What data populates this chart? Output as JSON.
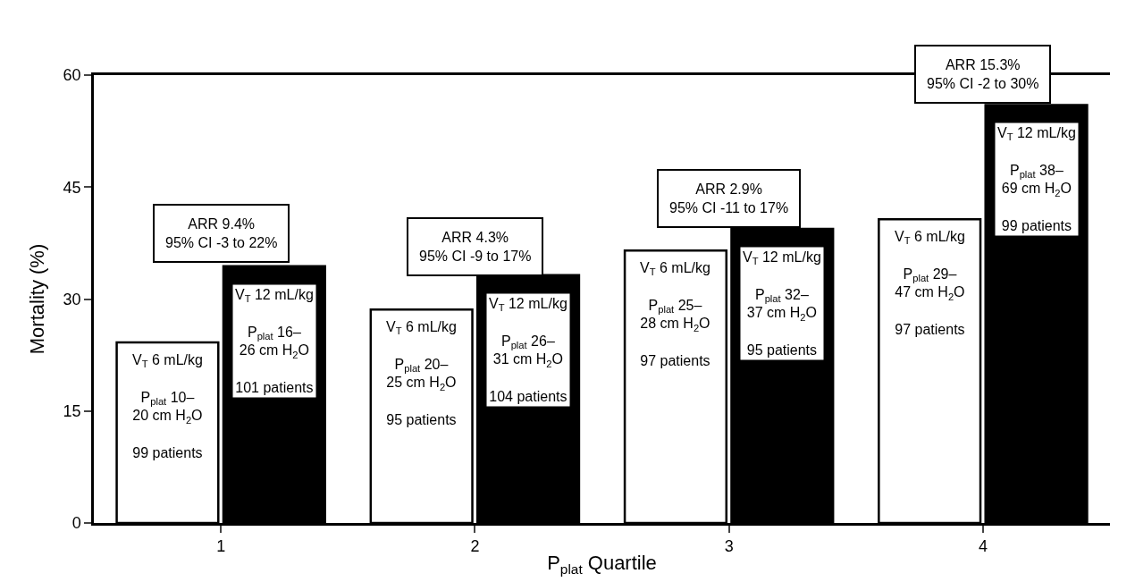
{
  "chart_data": {
    "type": "bar",
    "xlabel": "P$_{plat}$ Quartile",
    "ylabel": "Mortality (%)",
    "categories": [
      "1",
      "2",
      "3",
      "4"
    ],
    "series": [
      {
        "color": "#ffffff",
        "values": [
          24.2,
          28.6,
          36.5,
          40.7
        ]
      },
      {
        "color": "#000000",
        "values": [
          34.4,
          33.2,
          39.4,
          56.0
        ]
      }
    ],
    "ylim": [
      0,
      60
    ],
    "yticks": [
      0,
      15,
      30,
      45,
      60
    ],
    "annotations": [
      "V$_{T}$ 6 mL/kg\n\nP$_{plat}$ 10–\n20 cm H$_{2}$O\n\n99 patients",
      "V$_{T}$ 6 mL/kg\n\nP$_{plat}$ 20–\n25 cm H$_{2}$O\n\n95 patients",
      "V$_{T}$ 6 mL/kg\n\nP$_{plat}$ 25–\n28 cm H$_{2}$O\n\n97 patients",
      "V$_{T}$ 6 mL/kg\n\nP$_{plat}$ 29–\n47 cm H$_{2}$O\n\n97 patients",
      "V$_{T}$ 12 mL/kg\n\nP$_{plat}$ 16–\n26 cm H$_{2}$O\n\n101 patients",
      "V$_{T}$ 12 mL/kg\n\nP$_{plat}$ 26–\n31 cm H$_{2}$O\n\n104 patients",
      "V$_{T}$ 12 mL/kg\n\nP$_{plat}$ 32–\n37 cm H$_{2}$O\n\n95 patients",
      "V$_{T}$ 12 mL/kg\n\nP$_{plat}$ 38–\n69 cm H$_{2}$O\n\n99 patients",
      "ARR 9.4%\n95% CI -3 to 22%",
      "ARR 4.3%\n95% CI -9 to 17%",
      "ARR 2.9%\n95% CI -11 to 17%",
      "ARR 15.3%\n95% CI -2 to 30%"
    ]
  }
}
